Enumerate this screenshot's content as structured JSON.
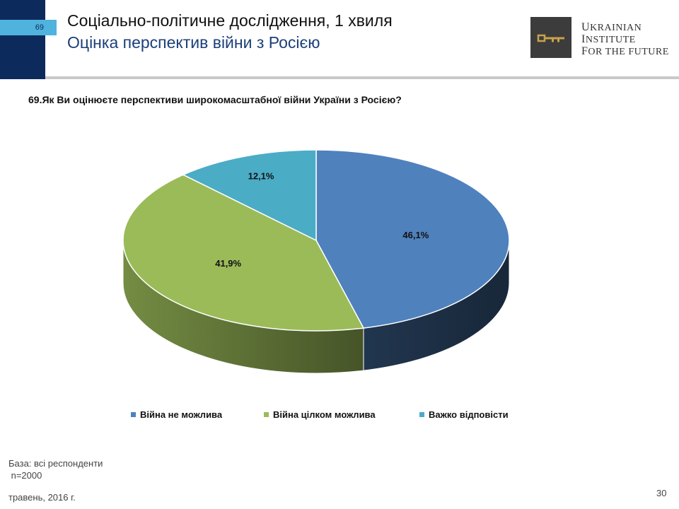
{
  "header": {
    "slide_badge": "69",
    "title_main": "Соціально-політичне дослідження, 1 хвиля",
    "title_sub": "Оцінка перспектив війни з Росією",
    "logo_lines": [
      "Ukrainian",
      "Institute",
      "for the Future"
    ]
  },
  "question": "69.Як Ви оцінюєте перспективи широкомасштабної війни України з Росією?",
  "chart_data": {
    "type": "pie",
    "style": "3d",
    "categories": [
      "Війна не можлива",
      "Війна цілком можлива",
      "Важко відповісти"
    ],
    "values": [
      46.1,
      41.9,
      12.1
    ],
    "data_labels": [
      "46,1%",
      "41,9%",
      "12,1%"
    ],
    "colors": [
      "#4f81bd",
      "#9bbb59",
      "#4bacc6"
    ],
    "legend_position": "bottom"
  },
  "footer": {
    "base_line1": "База: всі респонденти",
    "base_line2": " n=2000",
    "date": "травень, 2016 г.",
    "page_number": "30"
  },
  "colors": {
    "navy": "#0d2a5c",
    "accent": "#4fb3de"
  }
}
